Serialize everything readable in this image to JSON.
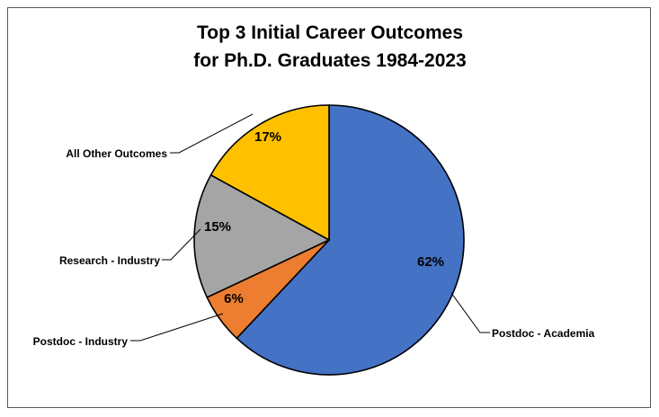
{
  "chart_data": {
    "type": "pie",
    "title": [
      "Top 3 Initial Career Outcomes",
      "for Ph.D. Graduates 1984-2023"
    ],
    "slices": [
      {
        "label": "Postdoc - Academia",
        "value": 62,
        "value_label": "62%",
        "color": "#4472C4"
      },
      {
        "label": "Postdoc - Industry",
        "value": 6,
        "value_label": "6%",
        "color": "#ED7D31"
      },
      {
        "label": "Research - Industry",
        "value": 15,
        "value_label": "15%",
        "color": "#A5A5A5"
      },
      {
        "label": "All Other Outcomes",
        "value": 17,
        "value_label": "17%",
        "color": "#FFC000"
      }
    ],
    "start_angle": "12 o'clock",
    "direction": "clockwise",
    "legend": "none",
    "data_labels": "inside slice",
    "category_labels": "outside with leader lines"
  }
}
